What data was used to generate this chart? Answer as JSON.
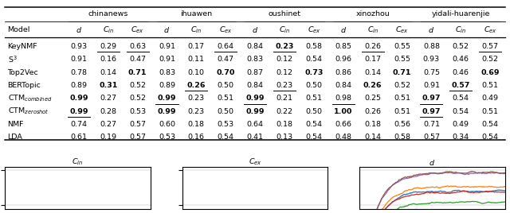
{
  "table": {
    "models": [
      "KeyNMF",
      "S³",
      "Top2Vec",
      "BERTopic",
      "CTM_combined",
      "CTM_zeroshot",
      "NMF",
      "LDA"
    ],
    "corpus_labels": [
      "chinanews",
      "ihuawen",
      "oushinet",
      "xinozhou",
      "yidali-huarenjie"
    ],
    "data": {
      "chinanews": {
        "d": [
          0.93,
          0.91,
          0.78,
          0.89,
          0.99,
          0.99,
          0.74,
          0.61
        ],
        "Cin": [
          0.29,
          0.16,
          0.14,
          0.31,
          0.27,
          0.28,
          0.27,
          0.19
        ],
        "Cex": [
          0.63,
          0.47,
          0.71,
          0.52,
          0.52,
          0.53,
          0.57,
          0.57
        ]
      },
      "ihuawen": {
        "d": [
          0.91,
          0.91,
          0.83,
          0.89,
          0.99,
          0.99,
          0.6,
          0.53
        ],
        "Cin": [
          0.17,
          0.11,
          0.1,
          0.26,
          0.23,
          0.23,
          0.18,
          0.16
        ],
        "Cex": [
          0.64,
          0.47,
          0.7,
          0.5,
          0.51,
          0.5,
          0.53,
          0.54
        ]
      },
      "oushinet": {
        "d": [
          0.84,
          0.83,
          0.87,
          0.84,
          0.99,
          0.99,
          0.64,
          0.41
        ],
        "Cin": [
          0.23,
          0.12,
          0.12,
          0.23,
          0.21,
          0.22,
          0.18,
          0.13
        ],
        "Cex": [
          0.58,
          0.54,
          0.73,
          0.5,
          0.51,
          0.5,
          0.54,
          0.54
        ]
      },
      "xinozhou": {
        "d": [
          0.85,
          0.96,
          0.86,
          0.84,
          0.98,
          1.0,
          0.66,
          0.48
        ],
        "Cin": [
          0.26,
          0.17,
          0.14,
          0.26,
          0.25,
          0.26,
          0.18,
          0.14
        ],
        "Cex": [
          0.55,
          0.55,
          0.71,
          0.52,
          0.51,
          0.51,
          0.56,
          0.58
        ]
      },
      "yidali-huarenjie": {
        "d": [
          0.88,
          0.93,
          0.75,
          0.91,
          0.97,
          0.97,
          0.71,
          0.57
        ],
        "Cin": [
          0.52,
          0.46,
          0.46,
          0.57,
          0.54,
          0.54,
          0.49,
          0.34
        ],
        "Cex": [
          0.57,
          0.52,
          0.69,
          0.51,
          0.49,
          0.51,
          0.54,
          0.54
        ]
      }
    },
    "bold": {
      "chinanews": {
        "d": [
          4,
          5
        ],
        "Cin": [
          3
        ],
        "Cex": [
          2
        ]
      },
      "ihuawen": {
        "d": [
          4,
          5
        ],
        "Cin": [
          3
        ],
        "Cex": [
          2
        ]
      },
      "oushinet": {
        "d": [
          4,
          5
        ],
        "Cin": [
          0
        ],
        "Cex": [
          2
        ]
      },
      "xinozhou": {
        "d": [
          5
        ],
        "Cin": [
          3
        ],
        "Cex": [
          2
        ]
      },
      "yidali-huarenjie": {
        "d": [
          4,
          5
        ],
        "Cin": [
          3
        ],
        "Cex": [
          2
        ]
      }
    },
    "underline": {
      "chinanews": {
        "d": [
          5
        ],
        "Cin": [
          0
        ],
        "Cex": [
          0
        ]
      },
      "ihuawen": {
        "d": [
          4
        ],
        "Cin": [
          3
        ],
        "Cex": [
          0
        ]
      },
      "oushinet": {
        "d": [
          4
        ],
        "Cin": [
          0,
          3
        ],
        "Cex": []
      },
      "xinozhou": {
        "d": [
          4
        ],
        "Cin": [
          0
        ],
        "Cex": [
          7
        ]
      },
      "yidali-huarenjie": {
        "d": [
          4,
          5
        ],
        "Cin": [
          3
        ],
        "Cex": [
          0
        ]
      }
    }
  },
  "plot_colors": [
    "#1f77b4",
    "#ff7f0e",
    "#2ca02c",
    "#d62728",
    "#9467bd",
    "#8c564b",
    "#e377c2",
    "#7f7f7f"
  ]
}
